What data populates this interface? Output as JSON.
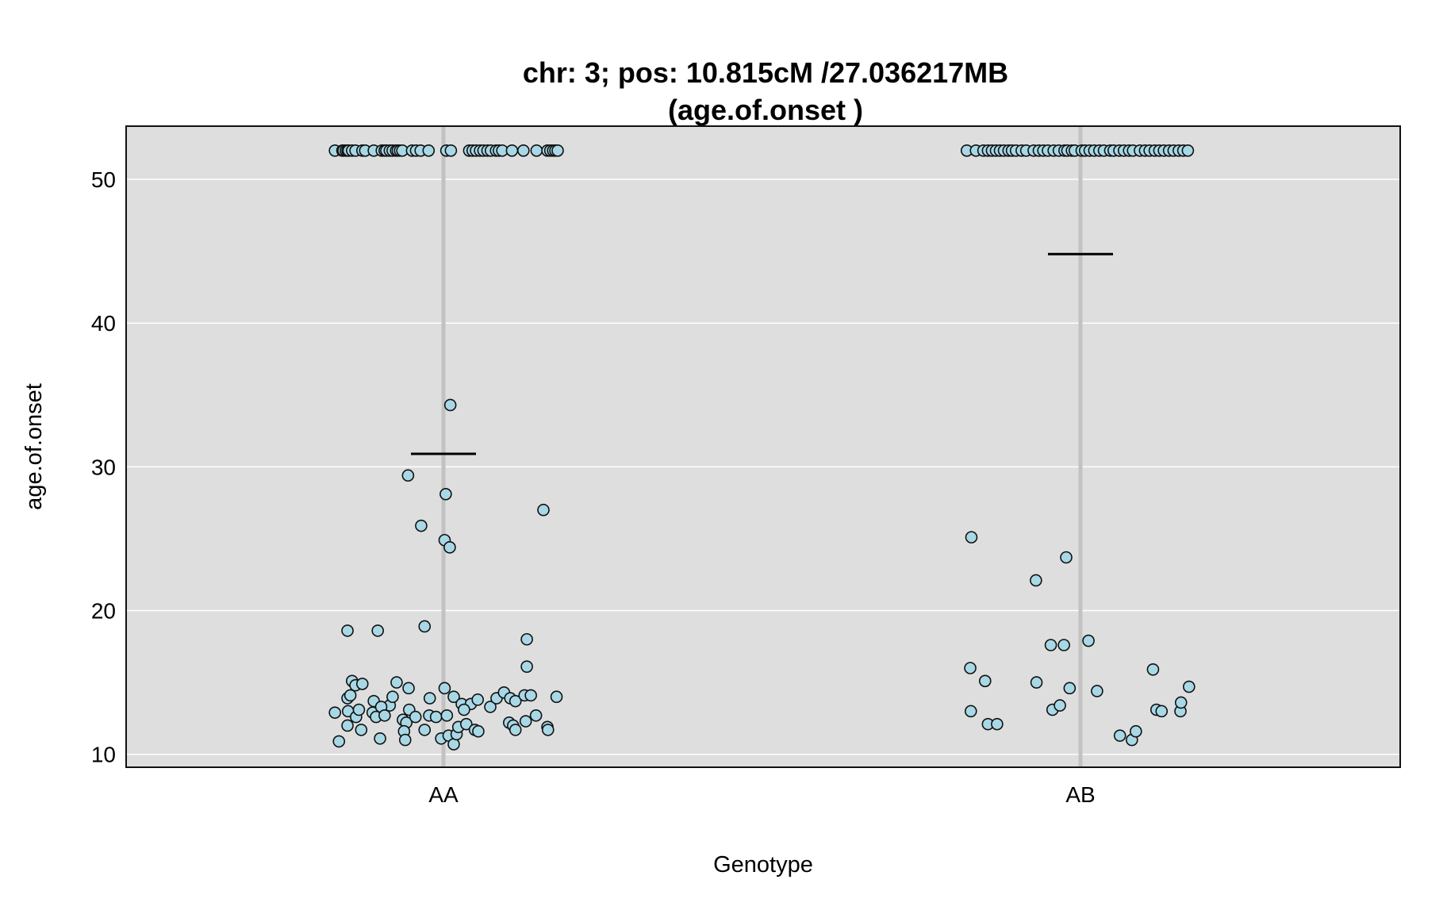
{
  "chart_data": {
    "type": "scatter",
    "title": "chr: 3; pos: 10.815cM /27.036217MB",
    "subtitle": "(age.of.onset )",
    "xlabel": "Genotype",
    "ylabel": "age.of.onset",
    "categories": [
      "AA",
      "AB"
    ],
    "ylim": [
      9.1,
      53.7
    ],
    "yticks": [
      10,
      20,
      30,
      40,
      50
    ],
    "ytick_labels": [
      "10",
      "20",
      "30",
      "40",
      "50"
    ],
    "grid": true,
    "legend": "none",
    "colors": {
      "panel_background": "#dedede",
      "gridline": "#ffffff",
      "category_line": "#c2c2c2",
      "point_fill": "#a8d8e6",
      "point_stroke": "#111111",
      "mean_line": "#000000"
    },
    "series": [
      {
        "category": "AA",
        "mean": 30.9,
        "points": [
          {
            "x": -0.19,
            "y": 52
          },
          {
            "x": -0.177,
            "y": 52
          },
          {
            "x": -0.175,
            "y": 52
          },
          {
            "x": -0.171,
            "y": 52
          },
          {
            "x": -0.168,
            "y": 52
          },
          {
            "x": -0.166,
            "y": 52
          },
          {
            "x": -0.16,
            "y": 52
          },
          {
            "x": -0.154,
            "y": 52
          },
          {
            "x": -0.142,
            "y": 52
          },
          {
            "x": -0.137,
            "y": 52
          },
          {
            "x": -0.122,
            "y": 52
          },
          {
            "x": -0.108,
            "y": 52
          },
          {
            "x": -0.103,
            "y": 52
          },
          {
            "x": -0.1,
            "y": 52
          },
          {
            "x": -0.094,
            "y": 52
          },
          {
            "x": -0.089,
            "y": 52
          },
          {
            "x": -0.083,
            "y": 52
          },
          {
            "x": -0.08,
            "y": 52
          },
          {
            "x": -0.076,
            "y": 52
          },
          {
            "x": -0.072,
            "y": 52
          },
          {
            "x": -0.055,
            "y": 52
          },
          {
            "x": -0.048,
            "y": 52
          },
          {
            "x": -0.04,
            "y": 52
          },
          {
            "x": -0.026,
            "y": 52
          },
          {
            "x": 0.005,
            "y": 52
          },
          {
            "x": 0.013,
            "y": 52
          },
          {
            "x": 0.045,
            "y": 52
          },
          {
            "x": 0.051,
            "y": 52
          },
          {
            "x": 0.057,
            "y": 52
          },
          {
            "x": 0.064,
            "y": 52
          },
          {
            "x": 0.07,
            "y": 52
          },
          {
            "x": 0.077,
            "y": 52
          },
          {
            "x": 0.083,
            "y": 52
          },
          {
            "x": 0.092,
            "y": 52
          },
          {
            "x": 0.097,
            "y": 52
          },
          {
            "x": 0.103,
            "y": 52
          },
          {
            "x": 0.12,
            "y": 52
          },
          {
            "x": 0.14,
            "y": 52
          },
          {
            "x": 0.163,
            "y": 52
          },
          {
            "x": 0.182,
            "y": 52
          },
          {
            "x": 0.187,
            "y": 52
          },
          {
            "x": 0.192,
            "y": 52
          },
          {
            "x": 0.196,
            "y": 52
          },
          {
            "x": 0.2,
            "y": 52
          },
          {
            "x": 0.012,
            "y": 34.3
          },
          {
            "x": -0.062,
            "y": 29.4
          },
          {
            "x": 0.004,
            "y": 28.1
          },
          {
            "x": 0.175,
            "y": 27.0
          },
          {
            "x": -0.039,
            "y": 25.9
          },
          {
            "x": 0.002,
            "y": 24.9
          },
          {
            "x": 0.011,
            "y": 24.4
          },
          {
            "x": -0.168,
            "y": 18.6
          },
          {
            "x": -0.115,
            "y": 18.6
          },
          {
            "x": -0.033,
            "y": 18.9
          },
          {
            "x": 0.146,
            "y": 18.0
          },
          {
            "x": 0.146,
            "y": 16.1
          },
          {
            "x": -0.16,
            "y": 15.1
          },
          {
            "x": -0.154,
            "y": 14.8
          },
          {
            "x": -0.142,
            "y": 14.9
          },
          {
            "x": -0.082,
            "y": 15.0
          },
          {
            "x": -0.061,
            "y": 14.6
          },
          {
            "x": 0.002,
            "y": 14.6
          },
          {
            "x": -0.168,
            "y": 13.9
          },
          {
            "x": -0.163,
            "y": 14.1
          },
          {
            "x": -0.122,
            "y": 13.7
          },
          {
            "x": -0.094,
            "y": 13.4
          },
          {
            "x": -0.089,
            "y": 14.0
          },
          {
            "x": -0.024,
            "y": 13.9
          },
          {
            "x": 0.018,
            "y": 14.0
          },
          {
            "x": 0.032,
            "y": 13.5
          },
          {
            "x": 0.048,
            "y": 13.5
          },
          {
            "x": 0.06,
            "y": 13.8
          },
          {
            "x": 0.082,
            "y": 13.3
          },
          {
            "x": 0.093,
            "y": 13.9
          },
          {
            "x": 0.106,
            "y": 14.3
          },
          {
            "x": 0.117,
            "y": 13.9
          },
          {
            "x": 0.126,
            "y": 13.7
          },
          {
            "x": 0.142,
            "y": 14.1
          },
          {
            "x": 0.153,
            "y": 14.1
          },
          {
            "x": 0.198,
            "y": 14.0
          },
          {
            "x": -0.19,
            "y": 12.9
          },
          {
            "x": -0.167,
            "y": 13.0
          },
          {
            "x": -0.153,
            "y": 12.6
          },
          {
            "x": -0.148,
            "y": 13.1
          },
          {
            "x": -0.124,
            "y": 12.9
          },
          {
            "x": -0.118,
            "y": 12.6
          },
          {
            "x": -0.109,
            "y": 13.3
          },
          {
            "x": -0.103,
            "y": 12.7
          },
          {
            "x": -0.071,
            "y": 12.4
          },
          {
            "x": -0.065,
            "y": 12.2
          },
          {
            "x": -0.06,
            "y": 13.1
          },
          {
            "x": -0.049,
            "y": 12.6
          },
          {
            "x": -0.025,
            "y": 12.7
          },
          {
            "x": -0.013,
            "y": 12.6
          },
          {
            "x": 0.006,
            "y": 12.7
          },
          {
            "x": 0.036,
            "y": 13.1
          },
          {
            "x": 0.115,
            "y": 12.2
          },
          {
            "x": 0.122,
            "y": 12.0
          },
          {
            "x": 0.144,
            "y": 12.3
          },
          {
            "x": 0.162,
            "y": 12.7
          },
          {
            "x": -0.183,
            "y": 10.9
          },
          {
            "x": -0.168,
            "y": 12.0
          },
          {
            "x": -0.144,
            "y": 11.7
          },
          {
            "x": -0.111,
            "y": 11.1
          },
          {
            "x": -0.069,
            "y": 11.6
          },
          {
            "x": -0.067,
            "y": 11.0
          },
          {
            "x": -0.033,
            "y": 11.7
          },
          {
            "x": -0.004,
            "y": 11.1
          },
          {
            "x": 0.009,
            "y": 11.3
          },
          {
            "x": 0.018,
            "y": 10.7
          },
          {
            "x": 0.023,
            "y": 11.4
          },
          {
            "x": 0.026,
            "y": 11.9
          },
          {
            "x": 0.04,
            "y": 12.1
          },
          {
            "x": 0.055,
            "y": 11.7
          },
          {
            "x": 0.061,
            "y": 11.6
          },
          {
            "x": 0.126,
            "y": 11.7
          },
          {
            "x": 0.182,
            "y": 11.9
          },
          {
            "x": 0.183,
            "y": 11.7
          }
        ]
      },
      {
        "category": "AB",
        "mean": 44.8,
        "points": [
          {
            "x": -0.199,
            "y": 52
          },
          {
            "x": -0.183,
            "y": 52
          },
          {
            "x": -0.17,
            "y": 52
          },
          {
            "x": -0.162,
            "y": 52
          },
          {
            "x": -0.155,
            "y": 52
          },
          {
            "x": -0.148,
            "y": 52
          },
          {
            "x": -0.141,
            "y": 52
          },
          {
            "x": -0.134,
            "y": 52
          },
          {
            "x": -0.126,
            "y": 52
          },
          {
            "x": -0.12,
            "y": 52
          },
          {
            "x": -0.113,
            "y": 52
          },
          {
            "x": -0.103,
            "y": 52
          },
          {
            "x": -0.095,
            "y": 52
          },
          {
            "x": -0.082,
            "y": 52
          },
          {
            "x": -0.073,
            "y": 52
          },
          {
            "x": -0.065,
            "y": 52
          },
          {
            "x": -0.057,
            "y": 52
          },
          {
            "x": -0.047,
            "y": 52
          },
          {
            "x": -0.038,
            "y": 52
          },
          {
            "x": -0.028,
            "y": 52
          },
          {
            "x": -0.023,
            "y": 52
          },
          {
            "x": -0.015,
            "y": 52
          },
          {
            "x": -0.01,
            "y": 52
          },
          {
            "x": 0.002,
            "y": 52
          },
          {
            "x": 0.008,
            "y": 52
          },
          {
            "x": 0.016,
            "y": 52
          },
          {
            "x": 0.024,
            "y": 52
          },
          {
            "x": 0.033,
            "y": 52
          },
          {
            "x": 0.041,
            "y": 52
          },
          {
            "x": 0.052,
            "y": 52
          },
          {
            "x": 0.058,
            "y": 52
          },
          {
            "x": 0.068,
            "y": 52
          },
          {
            "x": 0.076,
            "y": 52
          },
          {
            "x": 0.085,
            "y": 52
          },
          {
            "x": 0.092,
            "y": 52
          },
          {
            "x": 0.104,
            "y": 52
          },
          {
            "x": 0.113,
            "y": 52
          },
          {
            "x": 0.121,
            "y": 52
          },
          {
            "x": 0.13,
            "y": 52
          },
          {
            "x": 0.138,
            "y": 52
          },
          {
            "x": 0.146,
            "y": 52
          },
          {
            "x": 0.155,
            "y": 52
          },
          {
            "x": 0.163,
            "y": 52
          },
          {
            "x": 0.172,
            "y": 52
          },
          {
            "x": 0.18,
            "y": 52
          },
          {
            "x": 0.188,
            "y": 52
          },
          {
            "x": -0.191,
            "y": 25.1
          },
          {
            "x": -0.078,
            "y": 22.1
          },
          {
            "x": -0.025,
            "y": 23.7
          },
          {
            "x": -0.052,
            "y": 17.6
          },
          {
            "x": -0.029,
            "y": 17.6
          },
          {
            "x": 0.014,
            "y": 17.9
          },
          {
            "x": -0.193,
            "y": 16.0
          },
          {
            "x": 0.127,
            "y": 15.9
          },
          {
            "x": -0.167,
            "y": 15.1
          },
          {
            "x": -0.077,
            "y": 15.0
          },
          {
            "x": -0.019,
            "y": 14.6
          },
          {
            "x": 0.029,
            "y": 14.4
          },
          {
            "x": 0.19,
            "y": 14.7
          },
          {
            "x": -0.192,
            "y": 13.0
          },
          {
            "x": -0.049,
            "y": 13.1
          },
          {
            "x": -0.036,
            "y": 13.4
          },
          {
            "x": 0.133,
            "y": 13.1
          },
          {
            "x": 0.142,
            "y": 13.0
          },
          {
            "x": 0.175,
            "y": 13.0
          },
          {
            "x": 0.176,
            "y": 13.6
          },
          {
            "x": -0.162,
            "y": 12.1
          },
          {
            "x": -0.146,
            "y": 12.1
          },
          {
            "x": 0.069,
            "y": 11.3
          },
          {
            "x": 0.09,
            "y": 11.0
          },
          {
            "x": 0.097,
            "y": 11.6
          }
        ]
      }
    ]
  }
}
